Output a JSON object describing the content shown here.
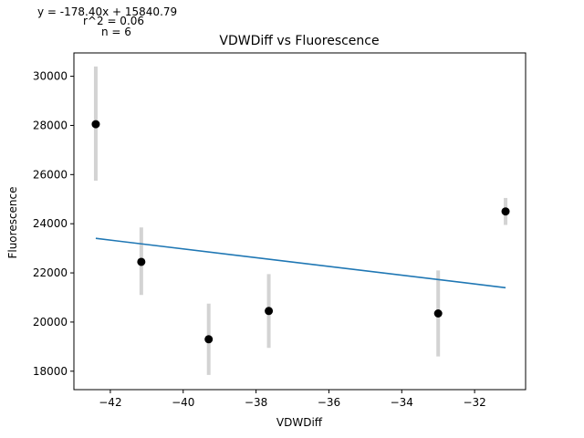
{
  "chart_data": {
    "type": "scatter",
    "title": "VDWDiff vs Fluorescence",
    "xlabel": "VDWDiff",
    "ylabel": "Fluorescence",
    "xlim": [
      -43,
      -30.6
    ],
    "ylim": [
      17250,
      30950
    ],
    "xticks": [
      -42,
      -40,
      -38,
      -36,
      -34,
      -32
    ],
    "xtick_labels": [
      "−42",
      "−40",
      "−38",
      "−36",
      "−34",
      "−32"
    ],
    "yticks": [
      18000,
      20000,
      22000,
      24000,
      26000,
      28000,
      30000
    ],
    "ytick_labels": [
      "18000",
      "20000",
      "22000",
      "24000",
      "26000",
      "28000",
      "30000"
    ],
    "grid": false,
    "points": [
      {
        "x": -42.4,
        "y": 28050,
        "err_low": 25750,
        "err_high": 30400
      },
      {
        "x": -41.15,
        "y": 22450,
        "err_low": 21100,
        "err_high": 23850
      },
      {
        "x": -39.3,
        "y": 19300,
        "err_low": 17850,
        "err_high": 20750
      },
      {
        "x": -37.65,
        "y": 20450,
        "err_low": 18950,
        "err_high": 21950
      },
      {
        "x": -33.0,
        "y": 20350,
        "err_low": 18600,
        "err_high": 22100
      },
      {
        "x": -31.15,
        "y": 24500,
        "err_low": 23950,
        "err_high": 25050
      }
    ],
    "fit_line": {
      "slope": -178.4,
      "intercept": 15840.79,
      "x_range": [
        -42.4,
        -31.15
      ]
    },
    "annotations": [
      "y = -178.40x + 15840.79",
      "r^2 = 0.06",
      "n = 6"
    ],
    "colors": {
      "points": "#000000",
      "error_bars": "#d3d3d3",
      "fit_line": "#1f77b4",
      "axes": "#000000"
    }
  }
}
